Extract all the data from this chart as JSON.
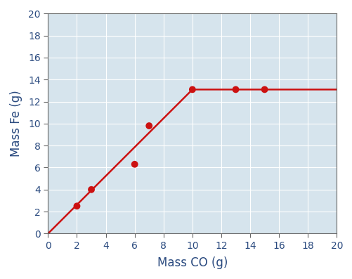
{
  "scatter_x": [
    2,
    3,
    6,
    7,
    10,
    13,
    15
  ],
  "scatter_y": [
    2.5,
    4.0,
    6.3,
    9.8,
    13.1,
    13.1,
    13.1
  ],
  "line_x": [
    0,
    10,
    20
  ],
  "line_y": [
    0,
    13.1,
    13.1
  ],
  "xlabel": "Mass CO (g)",
  "ylabel": "Mass Fe (g)",
  "xlim": [
    0,
    20
  ],
  "ylim": [
    0,
    20
  ],
  "xticks": [
    0,
    2,
    4,
    6,
    8,
    10,
    12,
    14,
    16,
    18,
    20
  ],
  "yticks": [
    0,
    2,
    4,
    6,
    8,
    10,
    12,
    14,
    16,
    18,
    20
  ],
  "plot_bg_color": "#d6e4ed",
  "line_color": "#cc1111",
  "dot_color": "#cc1111",
  "dot_size": 50,
  "line_width": 1.8,
  "xlabel_fontsize": 12,
  "ylabel_fontsize": 12,
  "tick_fontsize": 10,
  "label_color": "#2a4a7f",
  "tick_color": "#2a4a7f",
  "outer_bg": "#ffffff",
  "grid_color": "#ffffff",
  "spine_color": "#666666"
}
